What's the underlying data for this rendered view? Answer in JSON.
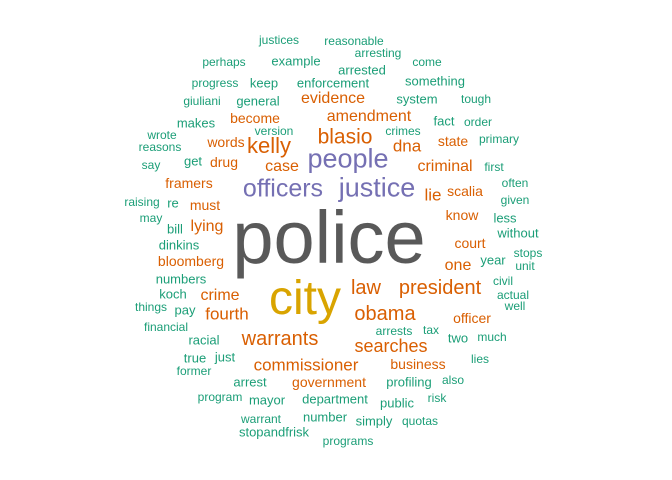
{
  "palette": {
    "grey": "#595959",
    "gold": "#d9a400",
    "purple": "#7570b3",
    "orange": "#d95f02",
    "teal": "#1b9e77"
  },
  "words": [
    {
      "text": "police",
      "color": "grey",
      "weight": 10
    },
    {
      "text": "city",
      "color": "gold",
      "weight": 9
    },
    {
      "text": "justice",
      "color": "purple",
      "weight": 6
    },
    {
      "text": "people",
      "color": "purple",
      "weight": 6
    },
    {
      "text": "officers",
      "color": "purple",
      "weight": 6
    },
    {
      "text": "law",
      "color": "orange",
      "weight": 5
    },
    {
      "text": "president",
      "color": "orange",
      "weight": 5
    },
    {
      "text": "obama",
      "color": "orange",
      "weight": 5
    },
    {
      "text": "warrants",
      "color": "orange",
      "weight": 5
    },
    {
      "text": "blasio",
      "color": "orange",
      "weight": 5
    },
    {
      "text": "kelly",
      "color": "orange",
      "weight": 5
    },
    {
      "text": "searches",
      "color": "orange",
      "weight": 5
    },
    {
      "text": "commissioner",
      "color": "orange",
      "weight": 4
    },
    {
      "text": "amendment",
      "color": "orange",
      "weight": 4
    },
    {
      "text": "evidence",
      "color": "orange",
      "weight": 4
    },
    {
      "text": "criminal",
      "color": "orange",
      "weight": 4
    },
    {
      "text": "fourth",
      "color": "orange",
      "weight": 4
    },
    {
      "text": "crime",
      "color": "orange",
      "weight": 4
    },
    {
      "text": "lie",
      "color": "orange",
      "weight": 4
    },
    {
      "text": "dna",
      "color": "orange",
      "weight": 4
    },
    {
      "text": "case",
      "color": "orange",
      "weight": 4
    },
    {
      "text": "lying",
      "color": "orange",
      "weight": 4
    },
    {
      "text": "one",
      "color": "orange",
      "weight": 3
    },
    {
      "text": "bloomberg",
      "color": "orange",
      "weight": 3
    },
    {
      "text": "government",
      "color": "orange",
      "weight": 3
    },
    {
      "text": "business",
      "color": "orange",
      "weight": 3
    },
    {
      "text": "officer",
      "color": "orange",
      "weight": 3
    },
    {
      "text": "court",
      "color": "orange",
      "weight": 3
    },
    {
      "text": "know",
      "color": "orange",
      "weight": 3
    },
    {
      "text": "scalia",
      "color": "orange",
      "weight": 3
    },
    {
      "text": "become",
      "color": "orange",
      "weight": 3
    },
    {
      "text": "words",
      "color": "orange",
      "weight": 3
    },
    {
      "text": "framers",
      "color": "orange",
      "weight": 3
    },
    {
      "text": "must",
      "color": "orange",
      "weight": 3
    },
    {
      "text": "drug",
      "color": "orange",
      "weight": 3
    },
    {
      "text": "state",
      "color": "orange",
      "weight": 3
    },
    {
      "text": "profiling",
      "color": "teal",
      "weight": 2
    },
    {
      "text": "two",
      "color": "teal",
      "weight": 2
    },
    {
      "text": "year",
      "color": "teal",
      "weight": 2
    },
    {
      "text": "fact",
      "color": "teal",
      "weight": 2
    },
    {
      "text": "system",
      "color": "teal",
      "weight": 2
    },
    {
      "text": "something",
      "color": "teal",
      "weight": 2
    },
    {
      "text": "enforcement",
      "color": "teal",
      "weight": 2
    },
    {
      "text": "arrested",
      "color": "teal",
      "weight": 2
    },
    {
      "text": "keep",
      "color": "teal",
      "weight": 2
    },
    {
      "text": "example",
      "color": "teal",
      "weight": 2
    },
    {
      "text": "general",
      "color": "teal",
      "weight": 2
    },
    {
      "text": "makes",
      "color": "teal",
      "weight": 2
    },
    {
      "text": "get",
      "color": "teal",
      "weight": 2
    },
    {
      "text": "dinkins",
      "color": "teal",
      "weight": 2
    },
    {
      "text": "numbers",
      "color": "teal",
      "weight": 2
    },
    {
      "text": "koch",
      "color": "teal",
      "weight": 2
    },
    {
      "text": "pay",
      "color": "teal",
      "weight": 2
    },
    {
      "text": "racial",
      "color": "teal",
      "weight": 2
    },
    {
      "text": "true",
      "color": "teal",
      "weight": 2
    },
    {
      "text": "just",
      "color": "teal",
      "weight": 2
    },
    {
      "text": "arrest",
      "color": "teal",
      "weight": 2
    },
    {
      "text": "mayor",
      "color": "teal",
      "weight": 2
    },
    {
      "text": "department",
      "color": "teal",
      "weight": 2
    },
    {
      "text": "public",
      "color": "teal",
      "weight": 2
    },
    {
      "text": "number",
      "color": "teal",
      "weight": 2
    },
    {
      "text": "simply",
      "color": "teal",
      "weight": 2
    },
    {
      "text": "stopandfrisk",
      "color": "teal",
      "weight": 2
    },
    {
      "text": "bill",
      "color": "teal",
      "weight": 2
    },
    {
      "text": "re",
      "color": "teal",
      "weight": 2
    },
    {
      "text": "without",
      "color": "teal",
      "weight": 2
    },
    {
      "text": "less",
      "color": "teal",
      "weight": 2
    },
    {
      "text": "order",
      "color": "teal",
      "weight": 1
    },
    {
      "text": "tough",
      "color": "teal",
      "weight": 1
    },
    {
      "text": "primary",
      "color": "teal",
      "weight": 1
    },
    {
      "text": "first",
      "color": "teal",
      "weight": 1
    },
    {
      "text": "often",
      "color": "teal",
      "weight": 1
    },
    {
      "text": "given",
      "color": "teal",
      "weight": 1
    },
    {
      "text": "stops",
      "color": "teal",
      "weight": 1
    },
    {
      "text": "unit",
      "color": "teal",
      "weight": 1
    },
    {
      "text": "civil",
      "color": "teal",
      "weight": 1
    },
    {
      "text": "actual",
      "color": "teal",
      "weight": 1
    },
    {
      "text": "well",
      "color": "teal",
      "weight": 1
    },
    {
      "text": "much",
      "color": "teal",
      "weight": 1
    },
    {
      "text": "lies",
      "color": "teal",
      "weight": 1
    },
    {
      "text": "also",
      "color": "teal",
      "weight": 1
    },
    {
      "text": "risk",
      "color": "teal",
      "weight": 1
    },
    {
      "text": "quotas",
      "color": "teal",
      "weight": 1
    },
    {
      "text": "programs",
      "color": "teal",
      "weight": 1
    },
    {
      "text": "warrant",
      "color": "teal",
      "weight": 1
    },
    {
      "text": "program",
      "color": "teal",
      "weight": 1
    },
    {
      "text": "former",
      "color": "teal",
      "weight": 1
    },
    {
      "text": "financial",
      "color": "teal",
      "weight": 1
    },
    {
      "text": "things",
      "color": "teal",
      "weight": 1
    },
    {
      "text": "may",
      "color": "teal",
      "weight": 1
    },
    {
      "text": "raising",
      "color": "teal",
      "weight": 1
    },
    {
      "text": "say",
      "color": "teal",
      "weight": 1
    },
    {
      "text": "reasons",
      "color": "teal",
      "weight": 1
    },
    {
      "text": "wrote",
      "color": "teal",
      "weight": 1
    },
    {
      "text": "version",
      "color": "teal",
      "weight": 1
    },
    {
      "text": "crimes",
      "color": "teal",
      "weight": 1
    },
    {
      "text": "giuliani",
      "color": "teal",
      "weight": 1
    },
    {
      "text": "progress",
      "color": "teal",
      "weight": 1
    },
    {
      "text": "perhaps",
      "color": "teal",
      "weight": 1
    },
    {
      "text": "justices",
      "color": "teal",
      "weight": 1
    },
    {
      "text": "reasonable",
      "color": "teal",
      "weight": 1
    },
    {
      "text": "arresting",
      "color": "teal",
      "weight": 1
    },
    {
      "text": "come",
      "color": "teal",
      "weight": 1
    },
    {
      "text": "arrests",
      "color": "teal",
      "weight": 1
    },
    {
      "text": "tax",
      "color": "teal",
      "weight": 1
    }
  ]
}
